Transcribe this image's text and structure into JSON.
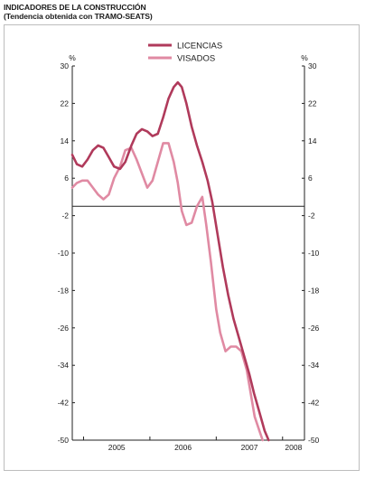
{
  "header": {
    "title": "INDICADORES DE LA CONSTRUCCIÓN",
    "subtitle": "(Tendencia obtenida con TRAMO-SEATS)"
  },
  "chart_data": {
    "type": "line",
    "ylim": [
      -50,
      30
    ],
    "yticks": [
      30,
      22,
      14,
      6,
      -2,
      -10,
      -18,
      -26,
      -34,
      -42,
      -50
    ],
    "ylabel_left": "%",
    "ylabel_right": "%",
    "xlim": [
      2004.83,
      2008.33
    ],
    "year_labels": [
      {
        "label": "2005",
        "x": 2005.5
      },
      {
        "label": "2006",
        "x": 2006.5
      },
      {
        "label": "2007",
        "x": 2007.5
      },
      {
        "label": "2008",
        "x": 2008.5
      }
    ],
    "year_boundaries": [
      2005,
      2006,
      2007,
      2008
    ],
    "reference_line": 0,
    "legend_position": "top-center",
    "series": [
      {
        "name": "LICENCIAS",
        "color": "#b03a5b",
        "points": [
          [
            2004.83,
            11
          ],
          [
            2004.9,
            9
          ],
          [
            2004.98,
            8.5
          ],
          [
            2005.06,
            10
          ],
          [
            2005.14,
            12
          ],
          [
            2005.22,
            13
          ],
          [
            2005.3,
            12.5
          ],
          [
            2005.38,
            10.5
          ],
          [
            2005.46,
            8.5
          ],
          [
            2005.55,
            8
          ],
          [
            2005.63,
            9.5
          ],
          [
            2005.72,
            13
          ],
          [
            2005.8,
            15.5
          ],
          [
            2005.88,
            16.5
          ],
          [
            2005.96,
            16
          ],
          [
            2006.04,
            15
          ],
          [
            2006.12,
            15.5
          ],
          [
            2006.2,
            19
          ],
          [
            2006.28,
            23
          ],
          [
            2006.36,
            25.5
          ],
          [
            2006.42,
            26.5
          ],
          [
            2006.48,
            25.5
          ],
          [
            2006.55,
            22
          ],
          [
            2006.63,
            17
          ],
          [
            2006.71,
            13
          ],
          [
            2006.79,
            9.5
          ],
          [
            2006.87,
            5.5
          ],
          [
            2006.94,
            1
          ],
          [
            2007.02,
            -6
          ],
          [
            2007.1,
            -13
          ],
          [
            2007.18,
            -19
          ],
          [
            2007.26,
            -24
          ],
          [
            2007.34,
            -28
          ],
          [
            2007.42,
            -32
          ],
          [
            2007.5,
            -36
          ],
          [
            2007.57,
            -40
          ],
          [
            2007.65,
            -44
          ],
          [
            2007.73,
            -48
          ],
          [
            2007.79,
            -50
          ]
        ]
      },
      {
        "name": "VISADOS",
        "color": "#e08aa3",
        "points": [
          [
            2004.83,
            4
          ],
          [
            2004.9,
            5
          ],
          [
            2004.98,
            5.5
          ],
          [
            2005.06,
            5.5
          ],
          [
            2005.14,
            4
          ],
          [
            2005.22,
            2.5
          ],
          [
            2005.3,
            1.5
          ],
          [
            2005.38,
            2.5
          ],
          [
            2005.46,
            6
          ],
          [
            2005.55,
            8.5
          ],
          [
            2005.63,
            12
          ],
          [
            2005.72,
            12.5
          ],
          [
            2005.8,
            10
          ],
          [
            2005.88,
            7
          ],
          [
            2005.96,
            4
          ],
          [
            2006.04,
            5.5
          ],
          [
            2006.12,
            9.5
          ],
          [
            2006.2,
            13.5
          ],
          [
            2006.28,
            13.5
          ],
          [
            2006.36,
            9.5
          ],
          [
            2006.42,
            5
          ],
          [
            2006.48,
            -1
          ],
          [
            2006.55,
            -4
          ],
          [
            2006.63,
            -3.5
          ],
          [
            2006.71,
            0
          ],
          [
            2006.79,
            2
          ],
          [
            2006.85,
            -4
          ],
          [
            2006.92,
            -12
          ],
          [
            2007.0,
            -22
          ],
          [
            2007.06,
            -27
          ],
          [
            2007.14,
            -31
          ],
          [
            2007.22,
            -30
          ],
          [
            2007.3,
            -30
          ],
          [
            2007.38,
            -31
          ],
          [
            2007.46,
            -35
          ],
          [
            2007.52,
            -40
          ],
          [
            2007.58,
            -45
          ],
          [
            2007.65,
            -48
          ],
          [
            2007.7,
            -50
          ]
        ]
      }
    ]
  }
}
